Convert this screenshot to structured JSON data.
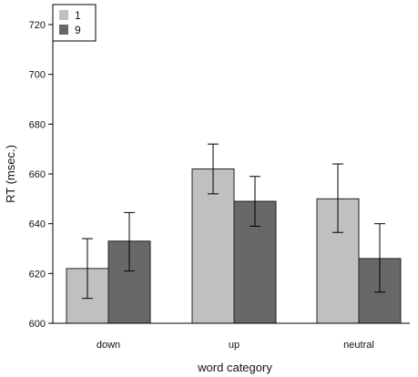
{
  "chart_data": {
    "type": "bar",
    "title": "",
    "xlabel": "word category",
    "ylabel": "RT (msec.)",
    "categories": [
      "down",
      "up",
      "neutral"
    ],
    "ylim": [
      600,
      720
    ],
    "yticks": [
      600,
      620,
      640,
      660,
      680,
      700,
      720
    ],
    "grid": false,
    "legend_position": "top-left",
    "series": [
      {
        "name": "1",
        "color": "#c0c0c0",
        "values": [
          622,
          662,
          650
        ],
        "error_low": [
          610,
          652,
          636.5
        ],
        "error_high": [
          634,
          672,
          664
        ]
      },
      {
        "name": "9",
        "color": "#686868",
        "values": [
          633,
          649,
          626
        ],
        "error_low": [
          621,
          639,
          612.5
        ],
        "error_high": [
          644.5,
          659,
          640
        ]
      }
    ]
  }
}
